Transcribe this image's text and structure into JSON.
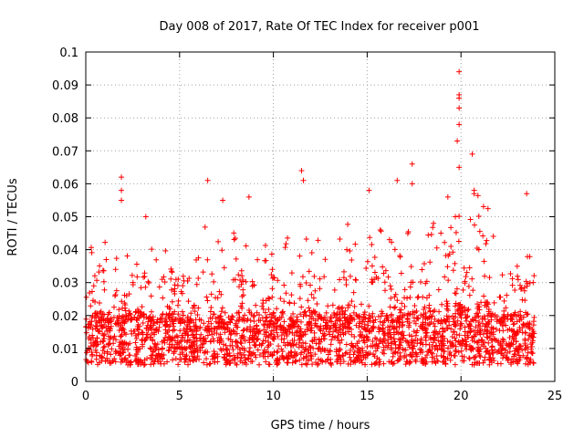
{
  "chart_data": {
    "type": "scatter",
    "title": "Day 008 of 2017, Rate Of TEC Index for receiver p001",
    "xlabel": "GPS time / hours",
    "ylabel": "ROTI / TECUs",
    "xlim": [
      0,
      25
    ],
    "ylim": [
      0,
      0.1
    ],
    "xticks": [
      0,
      5,
      10,
      15,
      20,
      25
    ],
    "xtick_labels": [
      "0",
      "5",
      "10",
      "15",
      "20",
      "25"
    ],
    "yticks": [
      0,
      0.01,
      0.02,
      0.03,
      0.04,
      0.05,
      0.06,
      0.07,
      0.08,
      0.09,
      0.1
    ],
    "ytick_labels": [
      "0",
      "0.01",
      "0.02",
      "0.03",
      "0.04",
      "0.05",
      "0.06",
      "0.07",
      "0.08",
      "0.09",
      "0.1"
    ],
    "grid": true,
    "marker": "+",
    "series": [
      {
        "name": "ROTI",
        "color": "#ff0000",
        "x_range": [
          0,
          23.9
        ],
        "baseline_range": [
          0.005,
          0.02
        ],
        "notable_points": [
          {
            "x": 1.9,
            "y": 0.062
          },
          {
            "x": 1.9,
            "y": 0.058
          },
          {
            "x": 1.9,
            "y": 0.055
          },
          {
            "x": 3.2,
            "y": 0.05
          },
          {
            "x": 6.5,
            "y": 0.061
          },
          {
            "x": 7.3,
            "y": 0.055
          },
          {
            "x": 8.7,
            "y": 0.056
          },
          {
            "x": 11.5,
            "y": 0.064
          },
          {
            "x": 11.6,
            "y": 0.061
          },
          {
            "x": 15.1,
            "y": 0.058
          },
          {
            "x": 16.6,
            "y": 0.061
          },
          {
            "x": 17.4,
            "y": 0.066
          },
          {
            "x": 17.4,
            "y": 0.06
          },
          {
            "x": 19.3,
            "y": 0.056
          },
          {
            "x": 19.7,
            "y": 0.05
          },
          {
            "x": 19.9,
            "y": 0.094
          },
          {
            "x": 19.9,
            "y": 0.087
          },
          {
            "x": 19.9,
            "y": 0.086
          },
          {
            "x": 19.9,
            "y": 0.083
          },
          {
            "x": 19.9,
            "y": 0.078
          },
          {
            "x": 19.8,
            "y": 0.073
          },
          {
            "x": 19.9,
            "y": 0.065
          },
          {
            "x": 20.6,
            "y": 0.069
          },
          {
            "x": 20.7,
            "y": 0.058
          },
          {
            "x": 20.7,
            "y": 0.057
          },
          {
            "x": 23.5,
            "y": 0.057
          }
        ]
      }
    ]
  }
}
